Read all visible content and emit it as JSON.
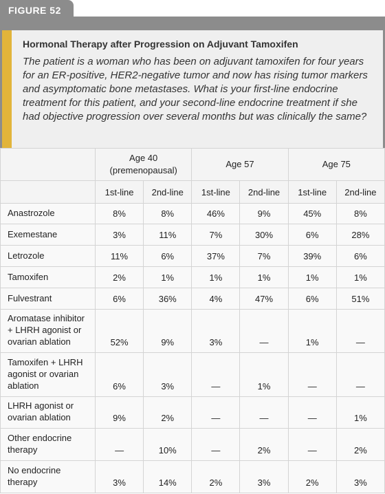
{
  "header": {
    "figure_label": "FIGURE 52",
    "title": "Hormonal Therapy after Progression on Adjuvant Tamoxifen",
    "question": "The patient is a woman who has been on adjuvant tamoxifen for four years for an ER-positive, HER2-negative tumor and now has rising tumor markers and asymptomatic bone metastases. What is your first-line endocrine treatment for this patient, and your second-line endocrine treatment if she had objective progression over several months but was clinically the same?"
  },
  "table": {
    "group_headers": [
      "Age 40 (premenopausal)",
      "Age 57",
      "Age 75"
    ],
    "sub_headers": [
      "1st-line",
      "2nd-line",
      "1st-line",
      "2nd-line",
      "1st-line",
      "2nd-line"
    ],
    "rows": [
      [
        "Anastrozole",
        "8%",
        "8%",
        "46%",
        "9%",
        "45%",
        "8%"
      ],
      [
        "Exemestane",
        "3%",
        "11%",
        "7%",
        "30%",
        "6%",
        "28%"
      ],
      [
        "Letrozole",
        "11%",
        "6%",
        "37%",
        "7%",
        "39%",
        "6%"
      ],
      [
        "Tamoxifen",
        "2%",
        "1%",
        "1%",
        "1%",
        "1%",
        "1%"
      ],
      [
        "Fulvestrant",
        "6%",
        "36%",
        "4%",
        "47%",
        "6%",
        "51%"
      ],
      [
        "Aromatase inhibitor + LHRH agonist or ovarian ablation",
        "52%",
        "9%",
        "3%",
        "—",
        "1%",
        "—"
      ],
      [
        "Tamoxifen + LHRH agonist or ovarian ablation",
        "6%",
        "3%",
        "—",
        "1%",
        "—",
        "—"
      ],
      [
        "LHRH agonist or ovarian ablation",
        "9%",
        "2%",
        "—",
        "—",
        "—",
        "1%"
      ],
      [
        "Other endocrine therapy",
        "—",
        "10%",
        "—",
        "2%",
        "—",
        "2%"
      ],
      [
        "No endocrine therapy",
        "3%",
        "14%",
        "2%",
        "3%",
        "2%",
        "3%"
      ]
    ]
  }
}
